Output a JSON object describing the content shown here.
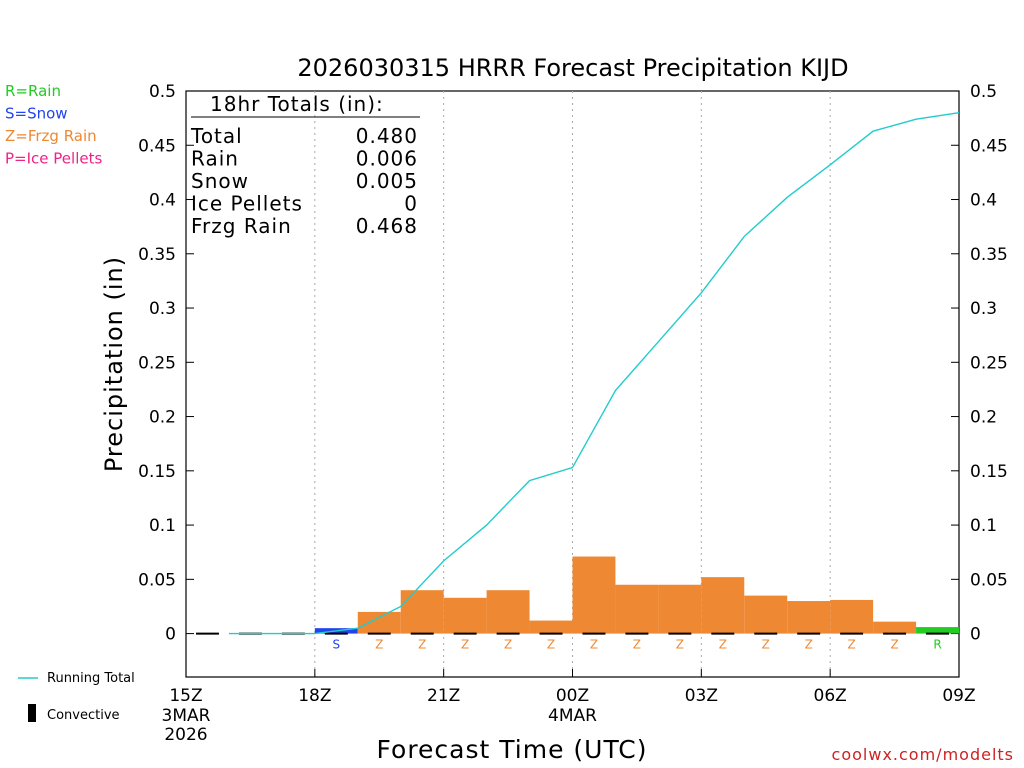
{
  "chart_data": {
    "type": "bar",
    "title": "2026030315 HRRR Forecast Precipitation KIJD",
    "xlabel": "Forecast Time (UTC)",
    "ylabel": "Precipitation (in)",
    "ylim": [
      -0.04,
      0.5
    ],
    "y_ticks": [
      "0",
      "0.05",
      "0.1",
      "0.15",
      "0.2",
      "0.25",
      "0.3",
      "0.35",
      "0.4",
      "0.45",
      "0.5"
    ],
    "x_range_hours": [
      0,
      18
    ],
    "x_ticks": [
      {
        "hour": 0,
        "label": "15Z",
        "sub1": "3MAR",
        "sub2": "2026"
      },
      {
        "hour": 3,
        "label": "18Z",
        "sub1": "",
        "sub2": ""
      },
      {
        "hour": 6,
        "label": "21Z",
        "sub1": "",
        "sub2": ""
      },
      {
        "hour": 9,
        "label": "00Z",
        "sub1": "4MAR",
        "sub2": ""
      },
      {
        "hour": 12,
        "label": "03Z",
        "sub1": "",
        "sub2": ""
      },
      {
        "hour": 15,
        "label": "06Z",
        "sub1": "",
        "sub2": ""
      },
      {
        "hour": 18,
        "label": "09Z",
        "sub1": "",
        "sub2": ""
      }
    ],
    "colors": {
      "rain": "#22cc22",
      "snow": "#2244ee",
      "frzg": "#ee8833",
      "ice": "#ee2288",
      "running": "#22cccc",
      "convective": "#000000"
    },
    "bars": [
      {
        "hour": 1,
        "value": 0.0,
        "ptype": "",
        "code": ""
      },
      {
        "hour": 2,
        "value": 0.0,
        "ptype": "",
        "code": ""
      },
      {
        "hour": 3,
        "value": 0.0,
        "ptype": "",
        "code": ""
      },
      {
        "hour": 4,
        "value": 0.005,
        "ptype": "snow",
        "code": "S"
      },
      {
        "hour": 5,
        "value": 0.02,
        "ptype": "frzg",
        "code": "Z"
      },
      {
        "hour": 6,
        "value": 0.04,
        "ptype": "frzg",
        "code": "Z"
      },
      {
        "hour": 7,
        "value": 0.033,
        "ptype": "frzg",
        "code": "Z"
      },
      {
        "hour": 8,
        "value": 0.04,
        "ptype": "frzg",
        "code": "Z"
      },
      {
        "hour": 9,
        "value": 0.012,
        "ptype": "frzg",
        "code": "Z"
      },
      {
        "hour": 10,
        "value": 0.071,
        "ptype": "frzg",
        "code": "Z"
      },
      {
        "hour": 11,
        "value": 0.045,
        "ptype": "frzg",
        "code": "Z"
      },
      {
        "hour": 12,
        "value": 0.045,
        "ptype": "frzg",
        "code": "Z"
      },
      {
        "hour": 13,
        "value": 0.052,
        "ptype": "frzg",
        "code": "Z"
      },
      {
        "hour": 14,
        "value": 0.035,
        "ptype": "frzg",
        "code": "Z"
      },
      {
        "hour": 15,
        "value": 0.03,
        "ptype": "frzg",
        "code": "Z"
      },
      {
        "hour": 16,
        "value": 0.031,
        "ptype": "frzg",
        "code": "Z"
      },
      {
        "hour": 17,
        "value": 0.011,
        "ptype": "frzg",
        "code": "Z"
      },
      {
        "hour": 18,
        "value": 0.006,
        "ptype": "rain",
        "code": "R"
      }
    ],
    "running_total": {
      "name": "Running Total",
      "hours": [
        1,
        2,
        3,
        4,
        5,
        6,
        7,
        8,
        9,
        10,
        11,
        12,
        13,
        14,
        15,
        16,
        17,
        18
      ],
      "values": [
        0.0,
        0.0,
        0.0,
        0.005,
        0.025,
        0.067,
        0.1,
        0.141,
        0.153,
        0.224,
        0.269,
        0.314,
        0.366,
        0.402,
        0.432,
        0.463,
        0.474,
        0.48
      ]
    },
    "totals_box": {
      "heading": "18hr Totals (in):",
      "rows": [
        {
          "label": "Total",
          "value": "0.480"
        },
        {
          "label": "Rain",
          "value": "0.006"
        },
        {
          "label": "Snow",
          "value": "0.005"
        },
        {
          "label": "Ice Pellets",
          "value": "0"
        },
        {
          "label": "Frzg Rain",
          "value": "0.468"
        }
      ]
    },
    "ptype_legend": [
      {
        "text": "R=Rain",
        "color": "#22cc22"
      },
      {
        "text": "S=Snow",
        "color": "#2244ee"
      },
      {
        "text": "Z=Frzg Rain",
        "color": "#ee8833"
      },
      {
        "text": "P=Ice Pellets",
        "color": "#ee2288"
      }
    ],
    "bottom_legend": {
      "running": "Running Total",
      "convective": "Convective"
    },
    "credit": "coolwx.com/modelts"
  }
}
